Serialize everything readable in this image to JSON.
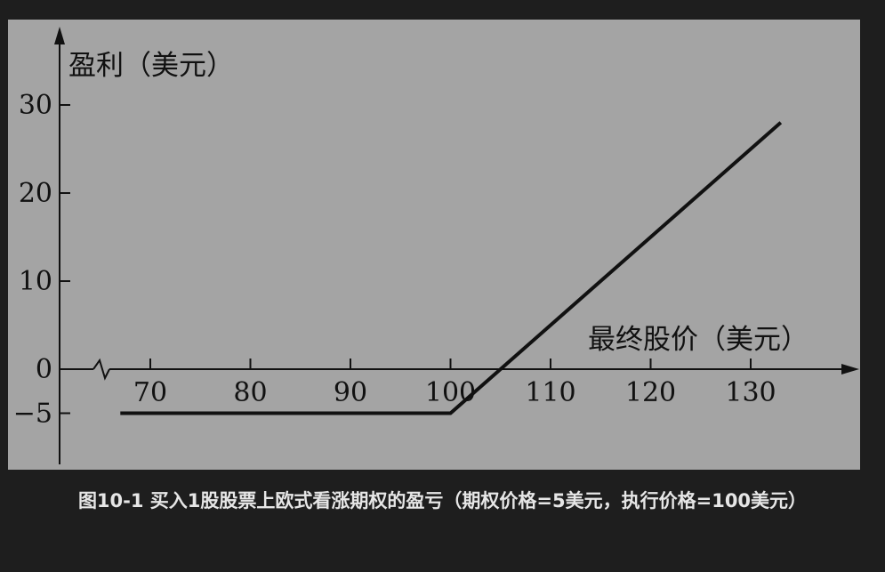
{
  "chart_data": {
    "type": "line",
    "ylabel": "盈利（美元）",
    "xlabel": "最终股价（美元）",
    "x_ticks": [
      "70",
      "80",
      "90",
      "100",
      "110",
      "120",
      "130"
    ],
    "y_ticks": [
      "30",
      "20",
      "10",
      "0",
      "−5"
    ],
    "xlim": [
      67,
      133
    ],
    "ylim": [
      -5,
      30
    ],
    "series": [
      {
        "x": [
          67,
          100,
          133
        ],
        "y": [
          -5,
          -5,
          28
        ]
      }
    ],
    "axis_break": true,
    "grid": false
  },
  "caption": "图10-1 买入1股股票上欧式看涨期权的盈亏（期权价格=5美元，执行价格=100美元）",
  "colors": {
    "background": "#1e1e1e",
    "plot_background": "#a4a4a4",
    "line": "#111111",
    "caption_text": "#e6e6e6"
  }
}
